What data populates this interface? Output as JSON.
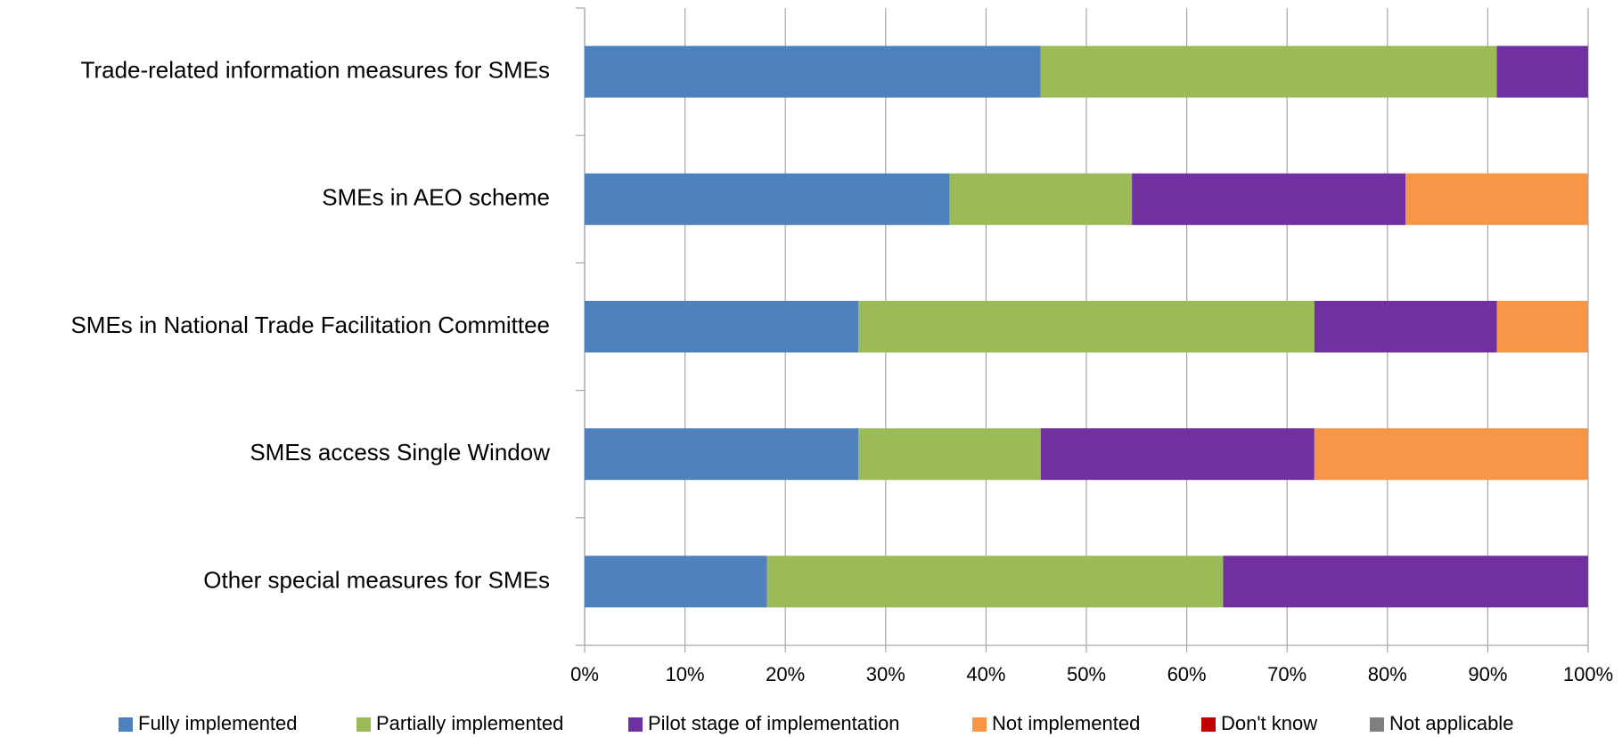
{
  "chart_data": {
    "type": "stacked-bar-horizontal",
    "categories": [
      "Trade-related information measures for SMEs",
      "SMEs in AEO scheme",
      "SMEs in National Trade Facilitation Committee",
      "SMEs access Single Window",
      "Other special measures for SMEs"
    ],
    "series": [
      {
        "name": "Fully implemented",
        "color": "#4f81bd",
        "values": [
          45.45,
          36.36,
          27.27,
          27.27,
          18.18
        ]
      },
      {
        "name": "Partially implemented",
        "color": "#9bbb59",
        "values": [
          45.45,
          18.18,
          45.45,
          18.18,
          45.45
        ]
      },
      {
        "name": "Pilot stage of implementation",
        "color": "#7030a0",
        "values": [
          9.09,
          27.27,
          18.18,
          27.27,
          36.36
        ]
      },
      {
        "name": "Not implemented",
        "color": "#f79646",
        "values": [
          0,
          18.18,
          9.09,
          27.27,
          0
        ]
      },
      {
        "name": "Don't know",
        "color": "#c00000",
        "values": [
          0,
          0,
          0,
          0,
          0
        ]
      },
      {
        "name": "Not applicable",
        "color": "#7f7f7f",
        "values": [
          0,
          0,
          0,
          0,
          0
        ]
      }
    ],
    "xlim": [
      0,
      100
    ],
    "xticks": [
      {
        "value": 0,
        "label": "0%"
      },
      {
        "value": 10,
        "label": "10%"
      },
      {
        "value": 20,
        "label": "20%"
      },
      {
        "value": 30,
        "label": "30%"
      },
      {
        "value": 40,
        "label": "40%"
      },
      {
        "value": 50,
        "label": "50%"
      },
      {
        "value": 60,
        "label": "60%"
      },
      {
        "value": 70,
        "label": "70%"
      },
      {
        "value": 80,
        "label": "80%"
      },
      {
        "value": 90,
        "label": "90%"
      },
      {
        "value": 100,
        "label": "100%"
      }
    ],
    "grid": true,
    "legend": "bottom"
  }
}
